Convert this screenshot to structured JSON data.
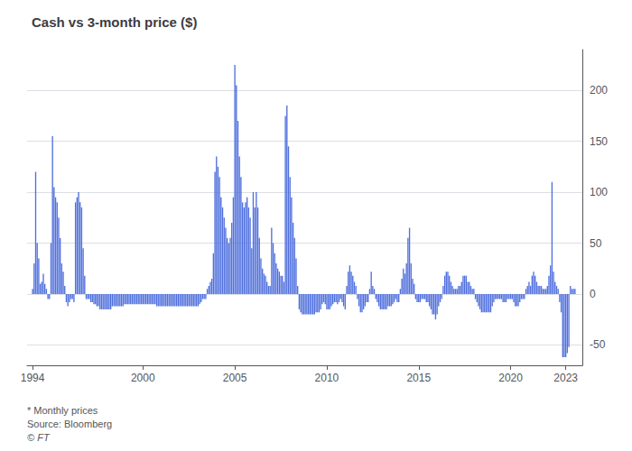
{
  "chart_data": {
    "type": "bar",
    "title": "Cash vs 3-month price ($)",
    "annotations": [
      "* Monthly prices",
      "Source: Bloomberg",
      "© FT"
    ],
    "x": [
      1994.0,
      1994.083,
      1994.167,
      1994.25,
      1994.333,
      1994.417,
      1994.5,
      1994.583,
      1994.667,
      1994.75,
      1994.833,
      1994.917,
      1995.0,
      1995.083,
      1995.167,
      1995.25,
      1995.333,
      1995.417,
      1995.5,
      1995.583,
      1995.667,
      1995.75,
      1995.833,
      1995.917,
      1996.0,
      1996.083,
      1996.167,
      1996.25,
      1996.333,
      1996.417,
      1996.5,
      1996.583,
      1996.667,
      1996.75,
      1996.833,
      1996.917,
      1997.0,
      1997.083,
      1997.167,
      1997.25,
      1997.333,
      1997.417,
      1997.5,
      1997.583,
      1997.667,
      1997.75,
      1997.833,
      1997.917,
      1998.0,
      1998.083,
      1998.167,
      1998.25,
      1998.333,
      1998.417,
      1998.5,
      1998.583,
      1998.667,
      1998.75,
      1998.833,
      1998.917,
      1999.0,
      1999.083,
      1999.167,
      1999.25,
      1999.333,
      1999.417,
      1999.5,
      1999.583,
      1999.667,
      1999.75,
      1999.833,
      1999.917,
      2000.0,
      2000.083,
      2000.167,
      2000.25,
      2000.333,
      2000.417,
      2000.5,
      2000.583,
      2000.667,
      2000.75,
      2000.833,
      2000.917,
      2001.0,
      2001.083,
      2001.167,
      2001.25,
      2001.333,
      2001.417,
      2001.5,
      2001.583,
      2001.667,
      2001.75,
      2001.833,
      2001.917,
      2002.0,
      2002.083,
      2002.167,
      2002.25,
      2002.333,
      2002.417,
      2002.5,
      2002.583,
      2002.667,
      2002.75,
      2002.833,
      2002.917,
      2003.0,
      2003.083,
      2003.167,
      2003.25,
      2003.333,
      2003.417,
      2003.5,
      2003.583,
      2003.667,
      2003.75,
      2003.833,
      2003.917,
      2004.0,
      2004.083,
      2004.167,
      2004.25,
      2004.333,
      2004.417,
      2004.5,
      2004.583,
      2004.667,
      2004.75,
      2004.833,
      2004.917,
      2005.0,
      2005.083,
      2005.167,
      2005.25,
      2005.333,
      2005.417,
      2005.5,
      2005.583,
      2005.667,
      2005.75,
      2005.833,
      2005.917,
      2006.0,
      2006.083,
      2006.167,
      2006.25,
      2006.333,
      2006.417,
      2006.5,
      2006.583,
      2006.667,
      2006.75,
      2006.833,
      2006.917,
      2007.0,
      2007.083,
      2007.167,
      2007.25,
      2007.333,
      2007.417,
      2007.5,
      2007.583,
      2007.667,
      2007.75,
      2007.833,
      2007.917,
      2008.0,
      2008.083,
      2008.167,
      2008.25,
      2008.333,
      2008.417,
      2008.5,
      2008.583,
      2008.667,
      2008.75,
      2008.833,
      2008.917,
      2009.0,
      2009.083,
      2009.167,
      2009.25,
      2009.333,
      2009.417,
      2009.5,
      2009.583,
      2009.667,
      2009.75,
      2009.833,
      2009.917,
      2010.0,
      2010.083,
      2010.167,
      2010.25,
      2010.333,
      2010.417,
      2010.5,
      2010.583,
      2010.667,
      2010.75,
      2010.833,
      2010.917,
      2011.0,
      2011.083,
      2011.167,
      2011.25,
      2011.333,
      2011.417,
      2011.5,
      2011.583,
      2011.667,
      2011.75,
      2011.833,
      2011.917,
      2012.0,
      2012.083,
      2012.167,
      2012.25,
      2012.333,
      2012.417,
      2012.5,
      2012.583,
      2012.667,
      2012.75,
      2012.833,
      2012.917,
      2013.0,
      2013.083,
      2013.167,
      2013.25,
      2013.333,
      2013.417,
      2013.5,
      2013.583,
      2013.667,
      2013.75,
      2013.833,
      2013.917,
      2014.0,
      2014.083,
      2014.167,
      2014.25,
      2014.333,
      2014.417,
      2014.5,
      2014.583,
      2014.667,
      2014.75,
      2014.833,
      2014.917,
      2015.0,
      2015.083,
      2015.167,
      2015.25,
      2015.333,
      2015.417,
      2015.5,
      2015.583,
      2015.667,
      2015.75,
      2015.833,
      2015.917,
      2016.0,
      2016.083,
      2016.167,
      2016.25,
      2016.333,
      2016.417,
      2016.5,
      2016.583,
      2016.667,
      2016.75,
      2016.833,
      2016.917,
      2017.0,
      2017.083,
      2017.167,
      2017.25,
      2017.333,
      2017.417,
      2017.5,
      2017.583,
      2017.667,
      2017.75,
      2017.833,
      2017.917,
      2018.0,
      2018.083,
      2018.167,
      2018.25,
      2018.333,
      2018.417,
      2018.5,
      2018.583,
      2018.667,
      2018.75,
      2018.833,
      2018.917,
      2019.0,
      2019.083,
      2019.167,
      2019.25,
      2019.333,
      2019.417,
      2019.5,
      2019.583,
      2019.667,
      2019.75,
      2019.833,
      2019.917,
      2020.0,
      2020.083,
      2020.167,
      2020.25,
      2020.333,
      2020.417,
      2020.5,
      2020.583,
      2020.667,
      2020.75,
      2020.833,
      2020.917,
      2021.0,
      2021.083,
      2021.167,
      2021.25,
      2021.333,
      2021.417,
      2021.5,
      2021.583,
      2021.667,
      2021.75,
      2021.833,
      2021.917,
      2022.0,
      2022.083,
      2022.167,
      2022.25,
      2022.333,
      2022.417,
      2022.5,
      2022.583,
      2022.667,
      2022.75,
      2022.833,
      2022.917,
      2023.0,
      2023.083,
      2023.167,
      2023.25,
      2023.333,
      2023.417,
      2023.5
    ],
    "values": [
      5,
      30,
      120,
      50,
      35,
      10,
      12,
      20,
      10,
      5,
      -5,
      -5,
      50,
      155,
      105,
      95,
      90,
      75,
      55,
      30,
      22,
      8,
      -8,
      -12,
      -8,
      -5,
      -5,
      -8,
      90,
      95,
      100,
      90,
      85,
      45,
      18,
      -5,
      -5,
      -5,
      -8,
      -8,
      -10,
      -10,
      -12,
      -12,
      -15,
      -15,
      -15,
      -15,
      -15,
      -15,
      -15,
      -15,
      -12,
      -12,
      -12,
      -12,
      -12,
      -12,
      -12,
      -12,
      -10,
      -10,
      -10,
      -10,
      -10,
      -10,
      -10,
      -10,
      -10,
      -10,
      -10,
      -10,
      -10,
      -10,
      -10,
      -10,
      -10,
      -10,
      -10,
      -10,
      -10,
      -12,
      -12,
      -12,
      -12,
      -12,
      -12,
      -12,
      -12,
      -12,
      -12,
      -12,
      -12,
      -12,
      -12,
      -12,
      -12,
      -12,
      -12,
      -12,
      -12,
      -12,
      -12,
      -12,
      -12,
      -12,
      -12,
      -12,
      -12,
      -10,
      -8,
      -5,
      -5,
      -5,
      5,
      8,
      12,
      15,
      40,
      120,
      135,
      125,
      115,
      95,
      85,
      75,
      65,
      55,
      50,
      55,
      70,
      95,
      225,
      205,
      170,
      135,
      115,
      90,
      85,
      90,
      95,
      85,
      75,
      45,
      100,
      85,
      100,
      85,
      55,
      35,
      25,
      20,
      18,
      12,
      8,
      8,
      65,
      50,
      40,
      30,
      25,
      22,
      18,
      18,
      12,
      175,
      185,
      145,
      115,
      95,
      70,
      55,
      35,
      8,
      -15,
      -18,
      -20,
      -20,
      -20,
      -20,
      -20,
      -20,
      -20,
      -20,
      -20,
      -18,
      -18,
      -18,
      -15,
      -10,
      -8,
      -10,
      -15,
      -15,
      -15,
      -12,
      -10,
      -8,
      -8,
      -10,
      -8,
      -5,
      -8,
      -12,
      -15,
      8,
      22,
      28,
      22,
      18,
      12,
      8,
      -5,
      -12,
      -18,
      -18,
      -15,
      -12,
      -8,
      -8,
      5,
      22,
      8,
      5,
      -5,
      -8,
      -12,
      -15,
      -15,
      -15,
      -15,
      -15,
      -12,
      -12,
      -12,
      -10,
      -8,
      -5,
      -8,
      -8,
      5,
      15,
      25,
      20,
      30,
      55,
      65,
      30,
      15,
      10,
      -5,
      -8,
      -8,
      -8,
      -5,
      -5,
      -5,
      -8,
      -8,
      -12,
      -15,
      -20,
      -20,
      -25,
      -20,
      -12,
      -8,
      -5,
      8,
      18,
      22,
      22,
      18,
      12,
      8,
      5,
      5,
      5,
      8,
      8,
      12,
      18,
      18,
      18,
      12,
      12,
      8,
      5,
      5,
      -5,
      -8,
      -12,
      -15,
      -18,
      -18,
      -18,
      -18,
      -18,
      -18,
      -18,
      -12,
      -8,
      -5,
      -5,
      -5,
      -5,
      -5,
      -8,
      -8,
      -8,
      -5,
      -5,
      -5,
      -5,
      -8,
      -12,
      -12,
      -12,
      -8,
      -5,
      -5,
      -5,
      5,
      8,
      12,
      8,
      18,
      22,
      18,
      12,
      8,
      8,
      8,
      5,
      5,
      5,
      8,
      18,
      28,
      110,
      22,
      12,
      8,
      5,
      -8,
      -18,
      -62,
      -62,
      -62,
      -58,
      -52,
      8,
      5,
      5,
      5
    ],
    "xlim": [
      1993.7,
      2023.9
    ],
    "xticks": [
      1994,
      2000,
      2005,
      2010,
      2015,
      2020,
      2023
    ],
    "ylim": [
      -70,
      240
    ],
    "yticks": [
      -50,
      0,
      50,
      100,
      150,
      200
    ],
    "grid": true
  }
}
